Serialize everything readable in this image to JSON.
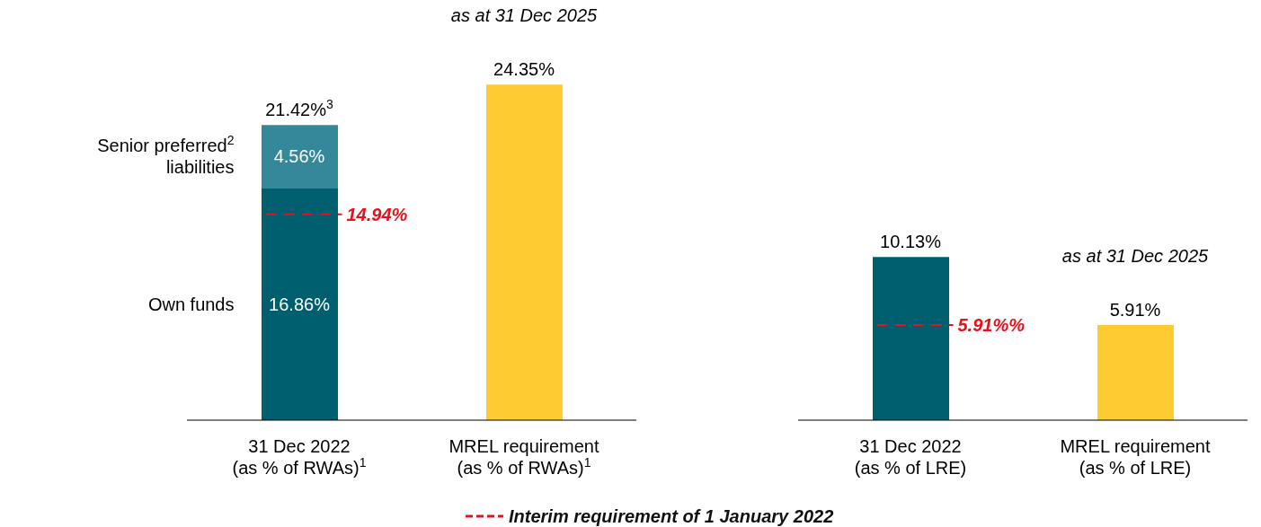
{
  "chart_data": [
    {
      "type": "bar",
      "stacked": true,
      "categories": [
        "31 Dec 2022\n(as % of RWAs)$^{1}$",
        "MREL requirement\n(as % of RWAs)$^{1}$"
      ],
      "series": [
        {
          "name": "Own funds",
          "color": "#005f6e",
          "colors": [
            "#005f6e",
            "#ffcb33"
          ],
          "values": [
            16.86,
            24.35
          ],
          "value_labels": [
            "16.86%",
            "24.35%"
          ]
        },
        {
          "name": "Senior preferred$^{2}$\nliabilities",
          "color": "#35879a",
          "values": [
            4.56,
            null
          ],
          "value_labels": [
            "4.56%",
            null
          ]
        }
      ],
      "totals": [
        "21.42%$^{3}$",
        null
      ],
      "ref_lines": [
        {
          "axis": "y",
          "value": 14.94,
          "label": "14.94%",
          "color": "#e8101a",
          "line_style": "dashed"
        }
      ],
      "annotations": [
        "as at 31 Dec 2025",
        "Interim requirement of 1 January 2022"
      ]
    },
    {
      "type": "bar",
      "categories": [
        "31 Dec 2022\n(as % of LRE)",
        "MREL requirement\n(as % of LRE)"
      ],
      "values": [
        10.13,
        5.91
      ],
      "colors": [
        "#005f6e",
        "#ffcb33"
      ],
      "value_labels": [
        "10.13%",
        "5.91%"
      ],
      "ref_lines": [
        {
          "axis": "y",
          "value": 5.91,
          "label": "5.91%%",
          "color": "#e8101a",
          "line_style": "dashed"
        }
      ],
      "annotations": [
        "as at 31 Dec 2025"
      ]
    }
  ]
}
